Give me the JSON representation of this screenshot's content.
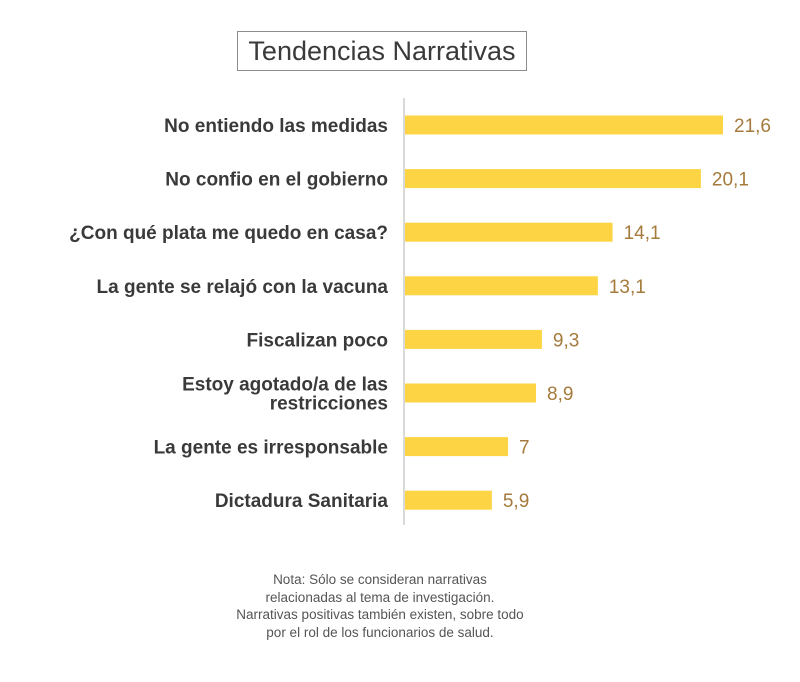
{
  "chart_data": {
    "type": "bar",
    "orientation": "horizontal",
    "title": "Tendencias Narrativas",
    "categories": [
      [
        "No entiendo las medidas"
      ],
      [
        "No confio en el gobierno"
      ],
      [
        "¿Con qué plata me quedo en casa?"
      ],
      [
        "La gente se relajó con la vacuna"
      ],
      [
        "Fiscalizan poco"
      ],
      [
        "Estoy agotado/a de las",
        "restricciones"
      ],
      [
        "La gente es irresponsable"
      ],
      [
        "Dictadura Sanitaria"
      ]
    ],
    "values": [
      21.6,
      20.1,
      14.1,
      13.1,
      9.3,
      8.9,
      7,
      5.9
    ],
    "value_labels": [
      "21,6",
      "20,1",
      "14,1",
      "13,1",
      "9,3",
      "8,9",
      "7",
      "5,9"
    ],
    "xlim": [
      0,
      25
    ],
    "grid": false,
    "bar_color": "#FDD444",
    "value_label_color": "#A57A3C",
    "category_label_color": "#3a3a3a",
    "axis_color": "#d9d9d9"
  },
  "note": {
    "lines": [
      "Nota: Sólo se consideran narrativas",
      "relacionadas al tema de investigación.",
      "Narrativas positivas también existen, sobre todo",
      "por el rol de los funcionarios de salud."
    ]
  }
}
